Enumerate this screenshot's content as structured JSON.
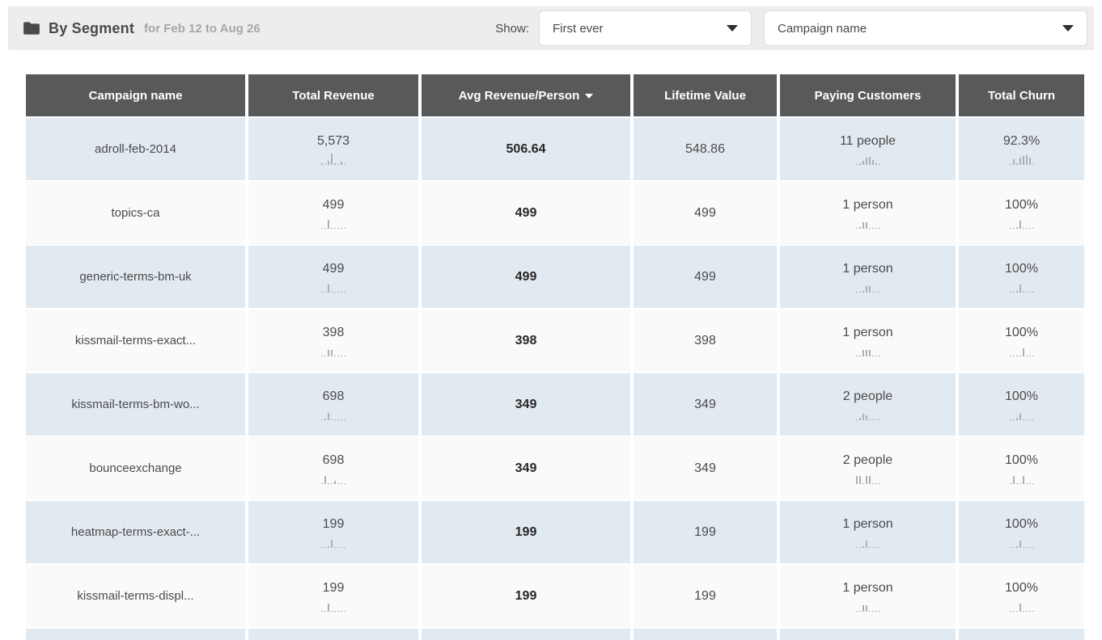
{
  "header": {
    "title": "By Segment",
    "subtitle": "for Feb 12 to Aug 26",
    "show_label": "Show:",
    "show_dropdown_value": "First ever",
    "segment_dropdown_value": "Campaign name"
  },
  "colors": {
    "topbar_bg": "#ededed",
    "table_header_bg": "#58595b",
    "row_highlight": "#e2eaf1",
    "row_plain": "#fafafa",
    "sparkline_bar": "#a9b2ba"
  },
  "table": {
    "columns": [
      "Campaign name",
      "Total Revenue",
      "Avg Revenue/Person",
      "Lifetime Value",
      "Paying Customers",
      "Total Churn"
    ],
    "sorted_column": "Avg Revenue/Person",
    "sort_direction": "desc",
    "rows": [
      {
        "campaign": "adroll-feb-2014",
        "total_revenue": "5,573",
        "avg_revenue_per_person": "506.64",
        "lifetime_value": "548.86",
        "paying_customers": "11 people",
        "total_churn": "92.3%",
        "spark_revenue": [
          2,
          1,
          5,
          14,
          2,
          1,
          4,
          1
        ],
        "spark_customers": [
          1,
          2,
          5,
          9,
          10,
          6,
          2,
          1
        ],
        "spark_churn": [
          1,
          7,
          2,
          9,
          11,
          12,
          9,
          1
        ]
      },
      {
        "campaign": "topics-ca",
        "total_revenue": "499",
        "avg_revenue_per_person": "499",
        "lifetime_value": "499",
        "paying_customers": "1 person",
        "total_churn": "100%",
        "spark_revenue": [
          1,
          1,
          11,
          1,
          1,
          1,
          1,
          1
        ],
        "spark_customers": [
          1,
          2,
          8,
          8,
          1,
          1,
          1,
          1
        ],
        "spark_churn": [
          1,
          1,
          2,
          10,
          1,
          1,
          1,
          1
        ]
      },
      {
        "campaign": "generic-terms-bm-uk",
        "total_revenue": "499",
        "avg_revenue_per_person": "499",
        "lifetime_value": "499",
        "paying_customers": "1 person",
        "total_churn": "100%",
        "spark_revenue": [
          1,
          1,
          10,
          1,
          1,
          1,
          1,
          1
        ],
        "spark_customers": [
          1,
          1,
          2,
          8,
          8,
          1,
          1,
          1
        ],
        "spark_churn": [
          1,
          1,
          2,
          10,
          1,
          1,
          1,
          1
        ]
      },
      {
        "campaign": "kissmail-terms-exact...",
        "total_revenue": "398",
        "avg_revenue_per_person": "398",
        "lifetime_value": "398",
        "paying_customers": "1 person",
        "total_churn": "100%",
        "spark_revenue": [
          1,
          1,
          8,
          8,
          1,
          1,
          1,
          1
        ],
        "spark_customers": [
          1,
          1,
          8,
          8,
          8,
          1,
          1,
          1
        ],
        "spark_churn": [
          1,
          1,
          1,
          1,
          10,
          1,
          1,
          1
        ]
      },
      {
        "campaign": "kissmail-terms-bm-wo...",
        "total_revenue": "698",
        "avg_revenue_per_person": "349",
        "lifetime_value": "349",
        "paying_customers": "2 people",
        "total_churn": "100%",
        "spark_revenue": [
          1,
          2,
          9,
          1,
          1,
          1,
          1,
          1
        ],
        "spark_customers": [
          1,
          3,
          8,
          6,
          1,
          1,
          1,
          1
        ],
        "spark_churn": [
          1,
          1,
          3,
          8,
          1,
          1,
          1,
          1
        ]
      },
      {
        "campaign": "bounceexchange",
        "total_revenue": "698",
        "avg_revenue_per_person": "349",
        "lifetime_value": "349",
        "paying_customers": "2 people",
        "total_churn": "100%",
        "spark_revenue": [
          1,
          10,
          1,
          1,
          4,
          1,
          1,
          1
        ],
        "spark_customers": [
          10,
          10,
          1,
          10,
          10,
          1,
          1,
          1
        ],
        "spark_churn": [
          1,
          10,
          1,
          1,
          10,
          1,
          1,
          1
        ]
      },
      {
        "campaign": "heatmap-terms-exact-...",
        "total_revenue": "199",
        "avg_revenue_per_person": "199",
        "lifetime_value": "199",
        "paying_customers": "1 person",
        "total_churn": "100%",
        "spark_revenue": [
          1,
          1,
          2,
          10,
          1,
          1,
          1,
          1
        ],
        "spark_customers": [
          1,
          1,
          2,
          9,
          1,
          1,
          1,
          1
        ],
        "spark_churn": [
          1,
          1,
          2,
          9,
          1,
          1,
          1,
          1
        ]
      },
      {
        "campaign": "kissmail-terms-displ...",
        "total_revenue": "199",
        "avg_revenue_per_person": "199",
        "lifetime_value": "199",
        "paying_customers": "1 person",
        "total_churn": "100%",
        "spark_revenue": [
          1,
          1,
          10,
          1,
          1,
          1,
          1,
          1
        ],
        "spark_customers": [
          1,
          1,
          8,
          8,
          1,
          1,
          1,
          1
        ],
        "spark_churn": [
          1,
          1,
          1,
          10,
          1,
          1,
          1,
          1
        ]
      }
    ]
  }
}
